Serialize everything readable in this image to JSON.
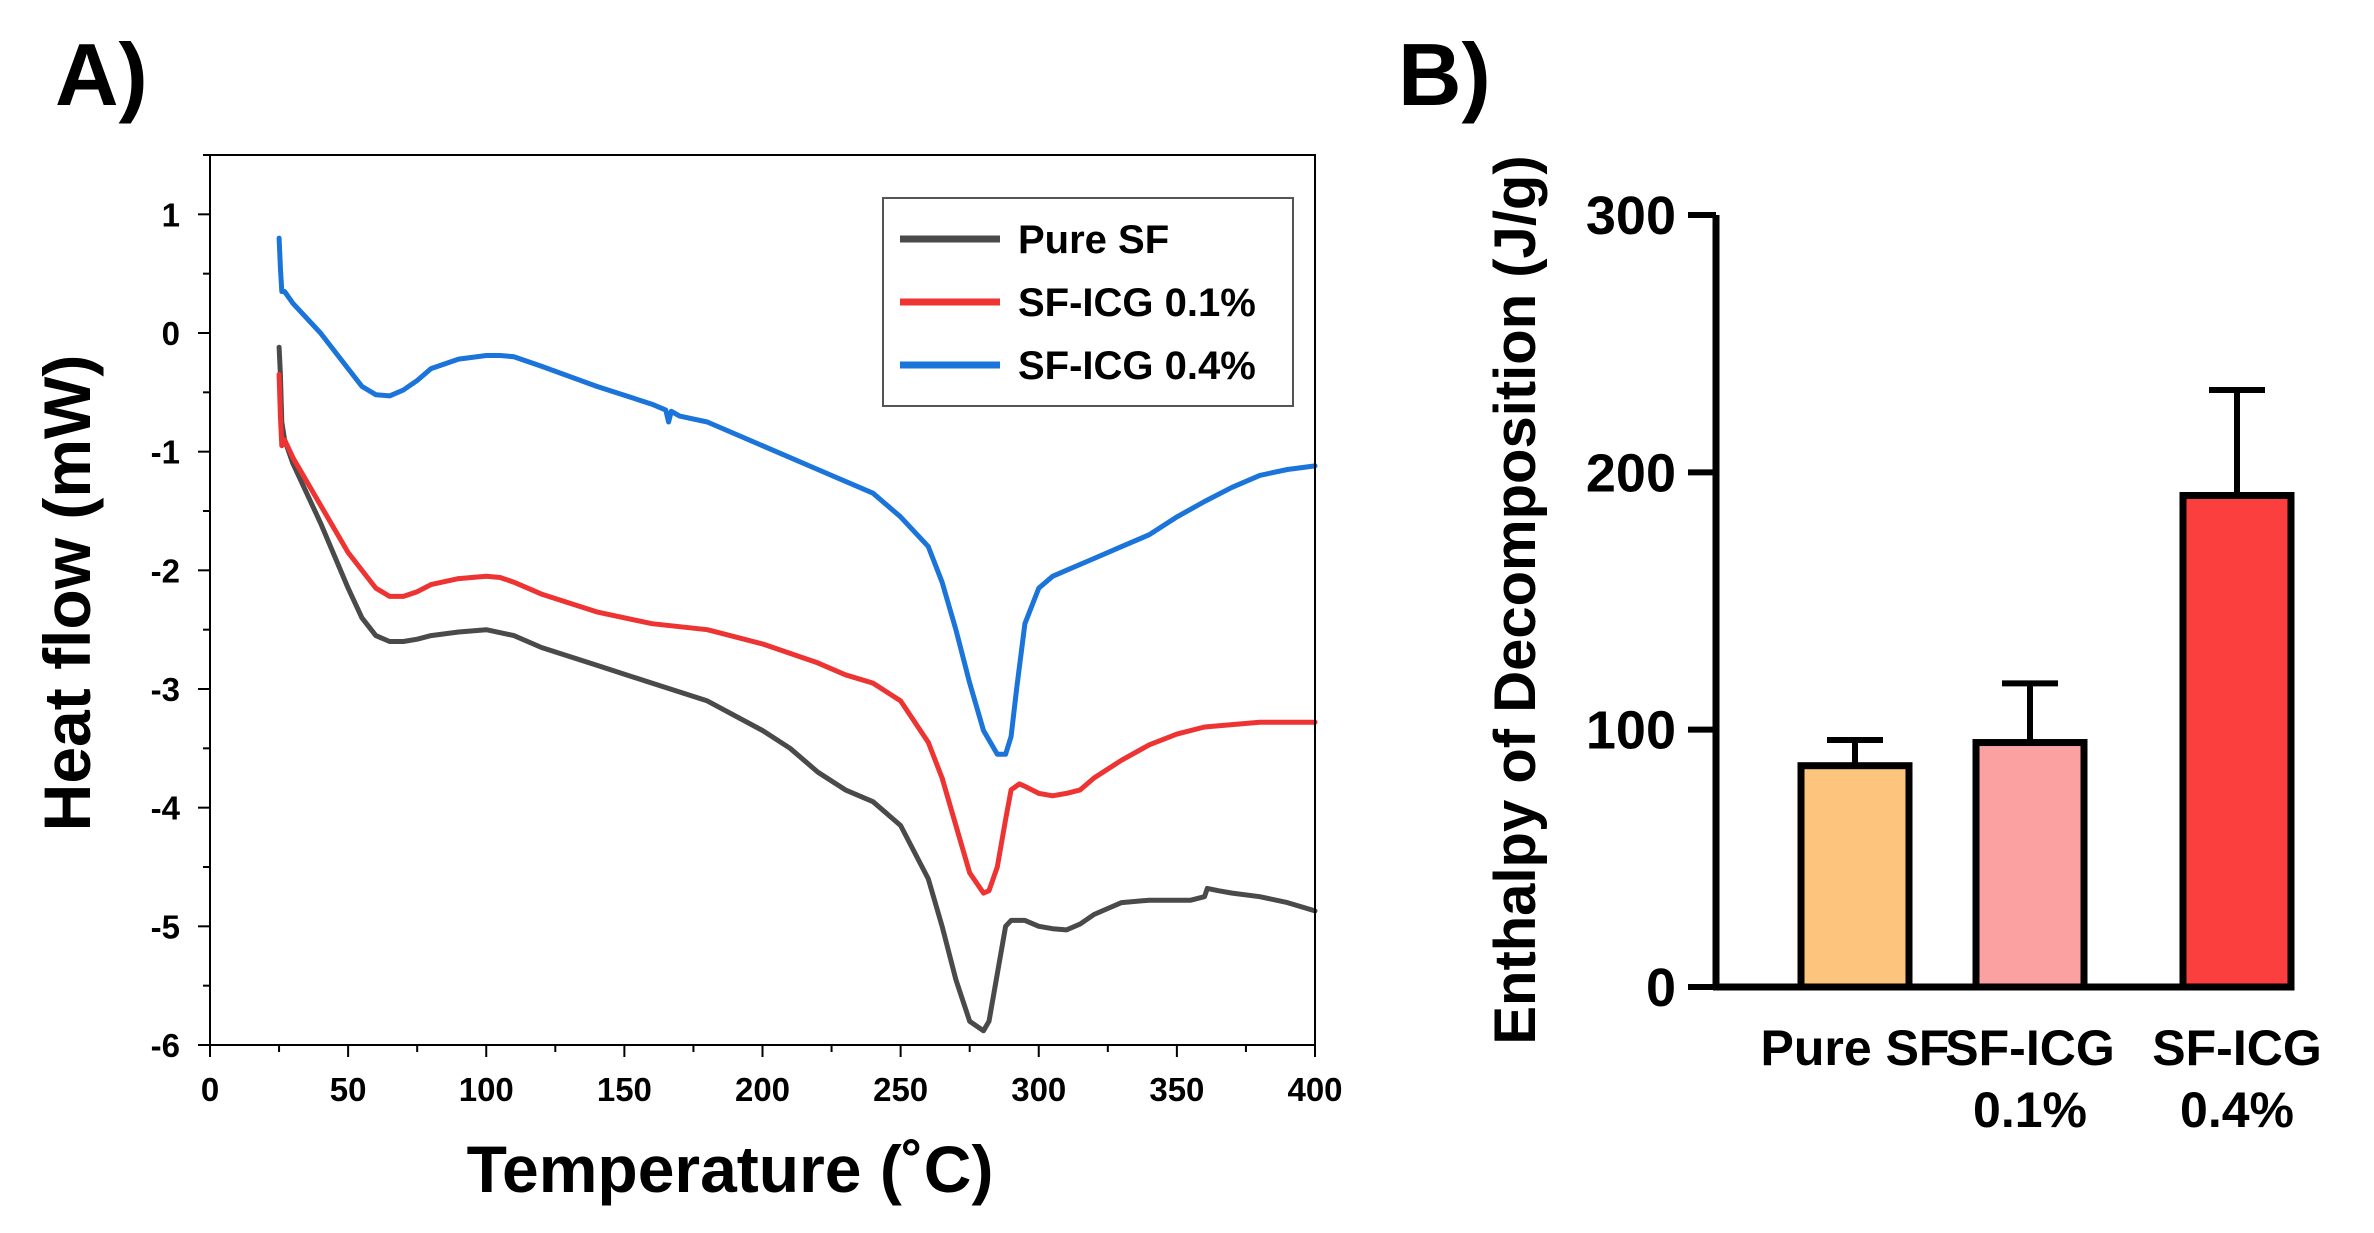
{
  "chart_data": [
    {
      "panel_label": "A)",
      "type": "line",
      "title": "",
      "xlabel": "Temperature (˚C)",
      "ylabel": "Heat flow (mW)",
      "xlim": [
        0,
        400
      ],
      "ylim": [
        -6,
        1.5
      ],
      "xticks": [
        0,
        50,
        100,
        150,
        200,
        250,
        300,
        350,
        400
      ],
      "yticks": [
        1,
        0,
        -1,
        -2,
        -3,
        -4,
        -5,
        -6
      ],
      "grid": false,
      "legend": "top-right",
      "series": [
        {
          "name": "Pure SF",
          "color": "#4a4a4a",
          "x": [
            25,
            25.5,
            26,
            27,
            30,
            40,
            50,
            55,
            60,
            65,
            70,
            75,
            80,
            90,
            100,
            110,
            120,
            140,
            160,
            180,
            200,
            210,
            220,
            230,
            235,
            240,
            250,
            260,
            265,
            270,
            275,
            280,
            282,
            285,
            288,
            290,
            295,
            300,
            305,
            310,
            315,
            320,
            325,
            330,
            340,
            350,
            355,
            360,
            361,
            365,
            370,
            380,
            390,
            400
          ],
          "y": [
            -0.12,
            -0.35,
            -0.75,
            -0.9,
            -1.1,
            -1.6,
            -2.15,
            -2.4,
            -2.55,
            -2.6,
            -2.6,
            -2.58,
            -2.55,
            -2.52,
            -2.5,
            -2.55,
            -2.65,
            -2.8,
            -2.95,
            -3.1,
            -3.35,
            -3.5,
            -3.7,
            -3.85,
            -3.9,
            -3.95,
            -4.15,
            -4.6,
            -5.0,
            -5.45,
            -5.8,
            -5.88,
            -5.8,
            -5.4,
            -5.0,
            -4.95,
            -4.95,
            -5.0,
            -5.02,
            -5.03,
            -4.98,
            -4.9,
            -4.85,
            -4.8,
            -4.78,
            -4.78,
            -4.78,
            -4.75,
            -4.68,
            -4.7,
            -4.72,
            -4.75,
            -4.8,
            -4.87
          ]
        },
        {
          "name": "SF-ICG 0.1%",
          "color": "#ee3333",
          "x": [
            25,
            25.5,
            26,
            27,
            30,
            40,
            50,
            60,
            65,
            70,
            75,
            80,
            90,
            100,
            105,
            110,
            120,
            140,
            160,
            180,
            200,
            220,
            230,
            240,
            250,
            260,
            265,
            270,
            275,
            280,
            282,
            285,
            288,
            290,
            293,
            295,
            300,
            305,
            310,
            315,
            320,
            330,
            340,
            350,
            360,
            370,
            380,
            390,
            400
          ],
          "y": [
            -0.35,
            -0.7,
            -0.95,
            -0.9,
            -1.05,
            -1.45,
            -1.85,
            -2.15,
            -2.22,
            -2.22,
            -2.18,
            -2.12,
            -2.07,
            -2.05,
            -2.06,
            -2.1,
            -2.2,
            -2.35,
            -2.45,
            -2.5,
            -2.62,
            -2.78,
            -2.88,
            -2.95,
            -3.1,
            -3.45,
            -3.75,
            -4.15,
            -4.55,
            -4.72,
            -4.7,
            -4.5,
            -4.1,
            -3.85,
            -3.8,
            -3.82,
            -3.88,
            -3.9,
            -3.88,
            -3.85,
            -3.75,
            -3.6,
            -3.47,
            -3.38,
            -3.32,
            -3.3,
            -3.28,
            -3.28,
            -3.28
          ]
        },
        {
          "name": "SF-ICG 0.4%",
          "color": "#1b74d9",
          "x": [
            25,
            25.5,
            26,
            27,
            30,
            40,
            50,
            55,
            60,
            65,
            70,
            75,
            80,
            90,
            100,
            105,
            110,
            120,
            140,
            160,
            165,
            166,
            167,
            170,
            180,
            200,
            220,
            240,
            250,
            260,
            265,
            270,
            275,
            280,
            285,
            288,
            290,
            292,
            295,
            300,
            305,
            310,
            320,
            330,
            340,
            350,
            360,
            370,
            380,
            390,
            400
          ],
          "y": [
            0.8,
            0.55,
            0.35,
            0.35,
            0.25,
            0.0,
            -0.3,
            -0.45,
            -0.52,
            -0.53,
            -0.48,
            -0.4,
            -0.3,
            -0.22,
            -0.19,
            -0.19,
            -0.2,
            -0.28,
            -0.45,
            -0.6,
            -0.65,
            -0.75,
            -0.66,
            -0.7,
            -0.75,
            -0.95,
            -1.15,
            -1.35,
            -1.55,
            -1.8,
            -2.1,
            -2.5,
            -2.95,
            -3.35,
            -3.55,
            -3.55,
            -3.4,
            -3.0,
            -2.45,
            -2.15,
            -2.05,
            -2.0,
            -1.9,
            -1.8,
            -1.7,
            -1.55,
            -1.42,
            -1.3,
            -1.2,
            -1.15,
            -1.12
          ]
        }
      ]
    },
    {
      "panel_label": "B)",
      "type": "bar",
      "title": "",
      "xlabel": "",
      "ylabel": "Enthalpy of Decomposition (J/g)",
      "ylim": [
        0,
        300
      ],
      "yticks": [
        0,
        100,
        200,
        300
      ],
      "grid": false,
      "categories": [
        {
          "line1": "Pure SF",
          "line2": ""
        },
        {
          "line1": "SF-ICG",
          "line2": "0.1%"
        },
        {
          "line1": "SF-ICG",
          "line2": "0.4%"
        }
      ],
      "values": [
        86,
        95,
        191
      ],
      "errors": [
        10,
        23,
        41
      ],
      "colors": [
        "#fcc47d",
        "#fba1a1",
        "#fb3e3e"
      ]
    }
  ]
}
